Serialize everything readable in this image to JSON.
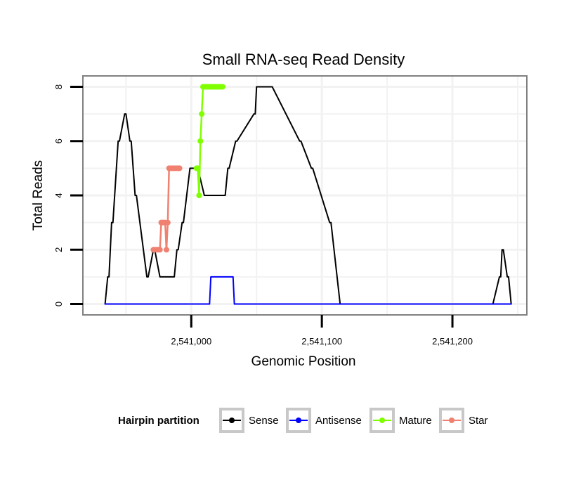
{
  "chart_data": {
    "type": "line",
    "title": "Small RNA-seq Read Density",
    "xlabel": "Genomic Position",
    "ylabel": "Total Reads",
    "xlim": [
      2540917,
      2541257
    ],
    "ylim": [
      -0.4,
      8.4
    ],
    "x_ticks": [
      {
        "value": 2541000,
        "label": "2,541,000"
      },
      {
        "value": 2541100,
        "label": "2,541,100"
      },
      {
        "value": 2541200,
        "label": "2,541,200"
      }
    ],
    "y_ticks": [
      {
        "value": 0,
        "label": "0"
      },
      {
        "value": 2,
        "label": "2"
      },
      {
        "value": 4,
        "label": "4"
      },
      {
        "value": 6,
        "label": "6"
      },
      {
        "value": 8,
        "label": "8"
      }
    ],
    "grid": true,
    "legend": {
      "title": "Hairpin partition",
      "position": "bottom",
      "entries": [
        {
          "label": "Sense",
          "color": "#000000"
        },
        {
          "label": "Antisense",
          "color": "#0000ff"
        },
        {
          "label": "Mature",
          "color": "#7fff00"
        },
        {
          "label": "Star",
          "color": "#f08070"
        }
      ]
    },
    "series": [
      {
        "name": "Sense",
        "color": "#000000",
        "x": [
          2540934,
          2540936,
          2540937,
          2540939,
          2540940,
          2540944,
          2540945,
          2540949,
          2540950,
          2540953,
          2540954,
          2540957,
          2540958,
          2540966,
          2540967,
          2540971,
          2540972,
          2540976,
          2540977,
          2540986,
          2540987,
          2540989,
          2540990,
          2540993,
          2540994,
          2540999,
          2540999.5,
          2541004,
          2541005,
          2541010,
          2541011,
          2541020,
          2541021,
          2541022,
          2541023,
          2541025,
          2541026,
          2541028,
          2541029,
          2541034,
          2541035,
          2541048,
          2541049,
          2541050,
          2541051,
          2541053,
          2541054,
          2541061,
          2541062,
          2541083,
          2541084,
          2541092,
          2541093,
          2541106,
          2541107,
          2541114,
          2541115,
          2541128,
          2541129,
          2541133,
          2541134,
          2541142,
          2541143,
          2541147,
          2541148,
          2541156,
          2541157,
          2541160,
          2541161,
          2541169,
          2541170,
          2541173,
          2541174,
          2541182,
          2541183,
          2541186,
          2541187,
          2541202,
          2541203,
          2541216,
          2541217,
          2541218,
          2541219,
          2541228,
          2541229,
          2541230,
          2541231,
          2541236,
          2541237,
          2541238,
          2541239,
          2541242,
          2541243,
          2541245
        ],
        "y": [
          0,
          1,
          1,
          3,
          3,
          6,
          6,
          7,
          7,
          6,
          6,
          4,
          4,
          1,
          1,
          2,
          2,
          1,
          1,
          1,
          1,
          2,
          2,
          3,
          3,
          5,
          5,
          5,
          5,
          4,
          4,
          4,
          4,
          4,
          4,
          4,
          4,
          5,
          5,
          6,
          6,
          7,
          7,
          8,
          8,
          8,
          8,
          8,
          8,
          6,
          6,
          5,
          5,
          3,
          3,
          0,
          0,
          0,
          0,
          0,
          0,
          0,
          0,
          0,
          0,
          0,
          0,
          0,
          0,
          0,
          0,
          0,
          0,
          0,
          0,
          0,
          0,
          0,
          0,
          0,
          0,
          0,
          0,
          0,
          0,
          0,
          0,
          1,
          1,
          2,
          2,
          1,
          1,
          0
        ]
      },
      {
        "name": "Antisense",
        "color": "#0000ff",
        "x": [
          2540934,
          2541014,
          2541015,
          2541032,
          2541033,
          2541245
        ],
        "y": [
          0,
          0,
          1,
          1,
          0,
          0
        ]
      },
      {
        "name": "Mature",
        "color": "#7fff00",
        "x": [
          2541004,
          2541005,
          2541006,
          2541007,
          2541008,
          2541009,
          2541010,
          2541011,
          2541012,
          2541013,
          2541014,
          2541015,
          2541016,
          2541017,
          2541018,
          2541019,
          2541020,
          2541021,
          2541022,
          2541023,
          2541024
        ],
        "y": [
          5,
          5,
          4,
          6,
          7,
          8,
          8,
          8,
          8,
          8,
          8,
          8,
          8,
          8,
          8,
          8,
          8,
          8,
          8,
          8,
          8
        ]
      },
      {
        "name": "Star",
        "color": "#f08070",
        "x": [
          2540971,
          2540972,
          2540973,
          2540974,
          2540975,
          2540976,
          2540977,
          2540978,
          2540979,
          2540980,
          2540981,
          2540982,
          2540983,
          2540984,
          2540985,
          2540986,
          2540987,
          2540988,
          2540989,
          2540990,
          2540991
        ],
        "y": [
          2,
          2,
          2,
          2,
          2,
          2,
          3,
          3,
          3,
          3,
          2,
          3,
          5,
          5,
          5,
          5,
          5,
          5,
          5,
          5,
          5
        ]
      }
    ]
  }
}
